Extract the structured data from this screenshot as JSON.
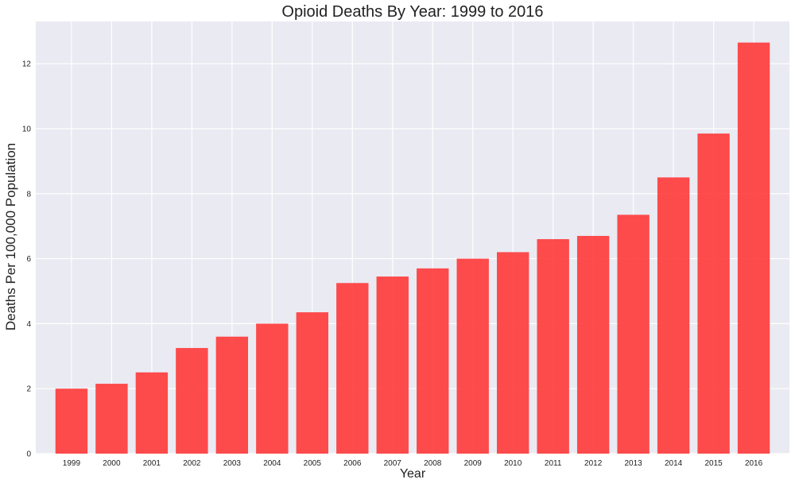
{
  "chart_data": {
    "type": "bar",
    "title": "Opioid Deaths By Year: 1999 to 2016",
    "xlabel": "Year",
    "ylabel": "Deaths Per 100,000 Population",
    "categories": [
      "1999",
      "2000",
      "2001",
      "2002",
      "2003",
      "2004",
      "2005",
      "2006",
      "2007",
      "2008",
      "2009",
      "2010",
      "2011",
      "2012",
      "2013",
      "2014",
      "2015",
      "2016"
    ],
    "values": [
      2.0,
      2.15,
      2.5,
      3.25,
      3.6,
      4.0,
      4.35,
      5.25,
      5.45,
      5.7,
      6.0,
      6.2,
      6.6,
      6.7,
      7.35,
      8.5,
      9.85,
      12.65
    ],
    "ylim": [
      0,
      13.3
    ],
    "yticks": [
      0,
      2,
      4,
      6,
      8,
      10,
      12
    ],
    "grid": true,
    "legend": "none",
    "colors": {
      "bar": "#ff3333",
      "background": "#eaeaf2",
      "grid": "#ffffff"
    }
  }
}
